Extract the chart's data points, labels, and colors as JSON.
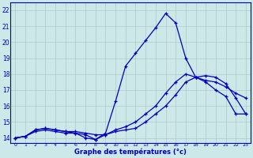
{
  "xlabel": "Graphe des températures (°c)",
  "xlim": [
    -0.5,
    23.5
  ],
  "ylim": [
    13.7,
    22.5
  ],
  "xticks": [
    0,
    1,
    2,
    3,
    4,
    5,
    6,
    7,
    8,
    9,
    10,
    11,
    12,
    13,
    14,
    15,
    16,
    17,
    18,
    19,
    20,
    21,
    22,
    23
  ],
  "yticks": [
    14,
    15,
    16,
    17,
    18,
    19,
    20,
    21,
    22
  ],
  "bg_color": "#cce8e8",
  "line_color": "#0000bb",
  "grid_color": "#b0c8c8",
  "series": [
    [
      14.0,
      14.1,
      14.5,
      14.6,
      14.5,
      14.4,
      14.3,
      14.0,
      13.9,
      14.3,
      16.3,
      18.5,
      19.3,
      20.1,
      20.9,
      21.8,
      21.2,
      19.0,
      17.8,
      17.5,
      17.0,
      16.6,
      15.5,
      15.5
    ],
    [
      14.0,
      14.1,
      14.5,
      14.6,
      14.5,
      14.4,
      14.4,
      14.3,
      14.2,
      14.2,
      14.4,
      14.5,
      14.6,
      15.0,
      15.5,
      16.0,
      16.7,
      17.5,
      17.8,
      17.9,
      17.8,
      17.4,
      16.5,
      15.5
    ],
    [
      14.0,
      14.1,
      14.4,
      14.5,
      14.4,
      14.3,
      14.3,
      14.2,
      13.9,
      14.2,
      14.5,
      14.7,
      15.0,
      15.5,
      16.0,
      16.8,
      17.5,
      18.0,
      17.8,
      17.6,
      17.5,
      17.2,
      16.8,
      16.5
    ]
  ]
}
